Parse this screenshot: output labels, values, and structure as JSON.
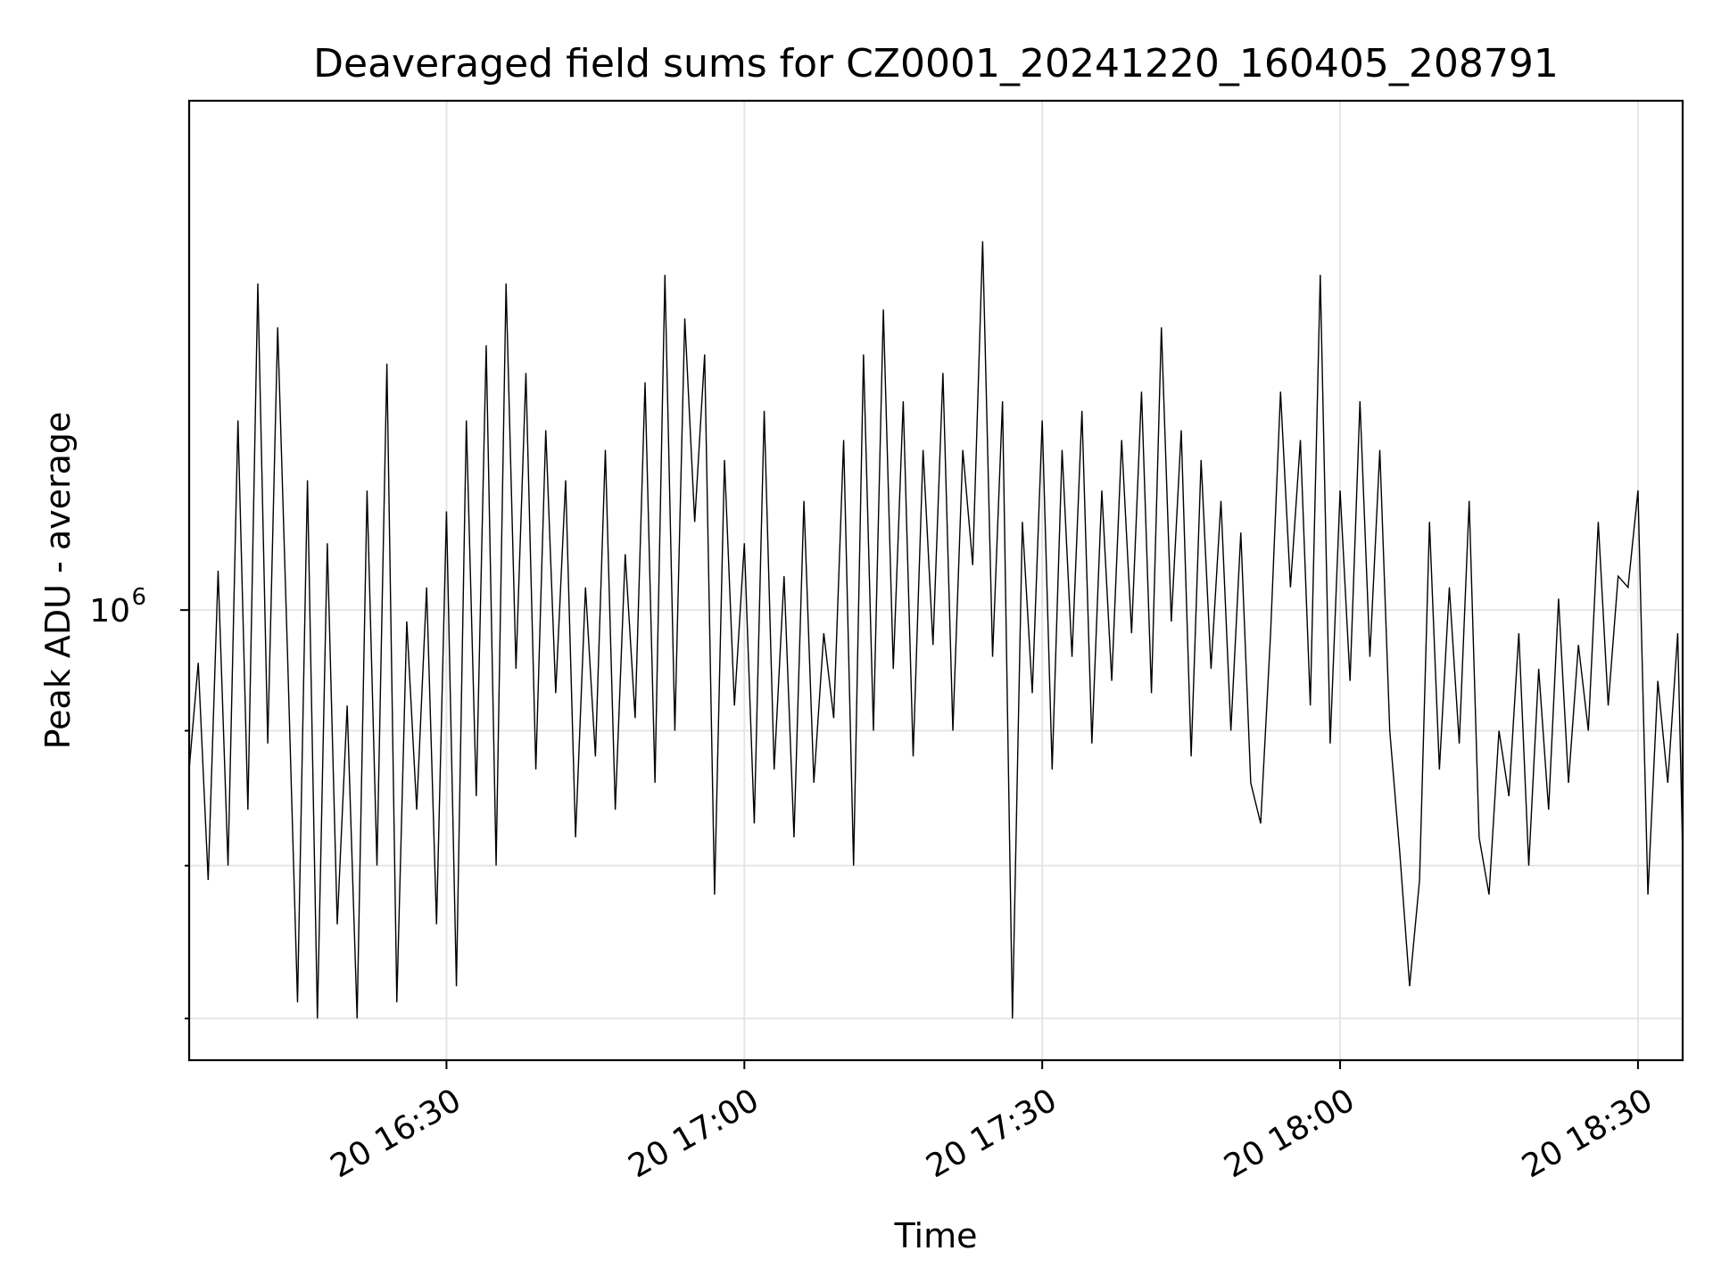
{
  "chart_data": {
    "type": "line",
    "title": "Deaveraged field sums for CZ0001_20241220_160405_208791",
    "xlabel": "Time",
    "ylabel": "Peak ADU - average",
    "y_scale": "log",
    "grid": true,
    "line_color": "#000000",
    "grid_color": "#e5e5e5",
    "x_range": [
      "2024-12-20 16:04:05",
      "2024-12-20 18:34:30"
    ],
    "y_range": [
      675000,
      1560000
    ],
    "x_ticks": [
      {
        "value": "2024-12-20 16:30",
        "label": "20 16:30"
      },
      {
        "value": "2024-12-20 17:00",
        "label": "20 17:00"
      },
      {
        "value": "2024-12-20 17:30",
        "label": "20 17:30"
      },
      {
        "value": "2024-12-20 18:00",
        "label": "20 18:00"
      },
      {
        "value": "2024-12-20 18:30",
        "label": "20 18:30"
      }
    ],
    "y_major_ticks": [
      {
        "value": 1000000,
        "base": "10",
        "exponent": "6"
      }
    ],
    "y_minor_ticks": [
      700000,
      800000,
      900000,
      2000000
    ],
    "series": [
      {
        "values": [
          [
            "16:04:05",
            870000
          ],
          [
            "16:05:00",
            955000
          ],
          [
            "16:06:00",
            790000
          ],
          [
            "16:07:00",
            1035000
          ],
          [
            "16:08:00",
            800000
          ],
          [
            "16:09:00",
            1180000
          ],
          [
            "16:10:00",
            840000
          ],
          [
            "16:11:00",
            1330000
          ],
          [
            "16:12:00",
            890000
          ],
          [
            "16:13:00",
            1280000
          ],
          [
            "16:14:00",
            960000
          ],
          [
            "16:15:00",
            710000
          ],
          [
            "16:16:00",
            1120000
          ],
          [
            "16:17:00",
            700000
          ],
          [
            "16:18:00",
            1060000
          ],
          [
            "16:19:00",
            760000
          ],
          [
            "16:20:00",
            920000
          ],
          [
            "16:21:00",
            700000
          ],
          [
            "16:22:00",
            1110000
          ],
          [
            "16:23:00",
            800000
          ],
          [
            "16:24:00",
            1240000
          ],
          [
            "16:25:00",
            710000
          ],
          [
            "16:26:00",
            990000
          ],
          [
            "16:27:00",
            840000
          ],
          [
            "16:28:00",
            1020000
          ],
          [
            "16:29:00",
            760000
          ],
          [
            "16:30:00",
            1090000
          ],
          [
            "16:31:00",
            720000
          ],
          [
            "16:32:00",
            1180000
          ],
          [
            "16:33:00",
            850000
          ],
          [
            "16:34:00",
            1260000
          ],
          [
            "16:35:00",
            800000
          ],
          [
            "16:36:00",
            1330000
          ],
          [
            "16:37:00",
            950000
          ],
          [
            "16:38:00",
            1230000
          ],
          [
            "16:39:00",
            870000
          ],
          [
            "16:40:00",
            1170000
          ],
          [
            "16:41:00",
            930000
          ],
          [
            "16:42:00",
            1120000
          ],
          [
            "16:43:00",
            820000
          ],
          [
            "16:44:00",
            1020000
          ],
          [
            "16:45:00",
            880000
          ],
          [
            "16:46:00",
            1150000
          ],
          [
            "16:47:00",
            840000
          ],
          [
            "16:48:00",
            1050000
          ],
          [
            "16:49:00",
            910000
          ],
          [
            "16:50:00",
            1220000
          ],
          [
            "16:51:00",
            860000
          ],
          [
            "16:52:00",
            1340000
          ],
          [
            "16:53:00",
            900000
          ],
          [
            "16:54:00",
            1290000
          ],
          [
            "16:55:00",
            1080000
          ],
          [
            "16:56:00",
            1250000
          ],
          [
            "16:57:00",
            780000
          ],
          [
            "16:58:00",
            1140000
          ],
          [
            "16:59:00",
            920000
          ],
          [
            "17:00:00",
            1060000
          ],
          [
            "17:01:00",
            830000
          ],
          [
            "17:02:00",
            1190000
          ],
          [
            "17:03:00",
            870000
          ],
          [
            "17:04:00",
            1030000
          ],
          [
            "17:05:00",
            820000
          ],
          [
            "17:06:00",
            1100000
          ],
          [
            "17:07:00",
            860000
          ],
          [
            "17:08:00",
            980000
          ],
          [
            "17:09:00",
            910000
          ],
          [
            "17:10:00",
            1160000
          ],
          [
            "17:11:00",
            800000
          ],
          [
            "17:12:00",
            1250000
          ],
          [
            "17:13:00",
            900000
          ],
          [
            "17:14:00",
            1300000
          ],
          [
            "17:15:00",
            950000
          ],
          [
            "17:16:00",
            1200000
          ],
          [
            "17:17:00",
            880000
          ],
          [
            "17:18:00",
            1150000
          ],
          [
            "17:19:00",
            970000
          ],
          [
            "17:20:00",
            1230000
          ],
          [
            "17:21:00",
            900000
          ],
          [
            "17:22:00",
            1150000
          ],
          [
            "17:23:00",
            1040000
          ],
          [
            "17:24:00",
            1380000
          ],
          [
            "17:25:00",
            960000
          ],
          [
            "17:26:00",
            1200000
          ],
          [
            "17:27:00",
            700000
          ],
          [
            "17:28:00",
            1080000
          ],
          [
            "17:29:00",
            930000
          ],
          [
            "17:30:00",
            1180000
          ],
          [
            "17:31:00",
            870000
          ],
          [
            "17:32:00",
            1150000
          ],
          [
            "17:33:00",
            960000
          ],
          [
            "17:34:00",
            1190000
          ],
          [
            "17:35:00",
            890000
          ],
          [
            "17:36:00",
            1110000
          ],
          [
            "17:37:00",
            940000
          ],
          [
            "17:38:00",
            1160000
          ],
          [
            "17:39:00",
            980000
          ],
          [
            "17:40:00",
            1210000
          ],
          [
            "17:41:00",
            930000
          ],
          [
            "17:42:00",
            1280000
          ],
          [
            "17:43:00",
            990000
          ],
          [
            "17:44:00",
            1170000
          ],
          [
            "17:45:00",
            880000
          ],
          [
            "17:46:00",
            1140000
          ],
          [
            "17:47:00",
            950000
          ],
          [
            "17:48:00",
            1100000
          ],
          [
            "17:49:00",
            900000
          ],
          [
            "17:50:00",
            1070000
          ],
          [
            "17:51:00",
            860000
          ],
          [
            "17:52:00",
            830000
          ],
          [
            "17:53:00",
            980000
          ],
          [
            "17:54:00",
            1210000
          ],
          [
            "17:55:00",
            1020000
          ],
          [
            "17:56:00",
            1160000
          ],
          [
            "17:57:00",
            920000
          ],
          [
            "17:58:00",
            1340000
          ],
          [
            "17:59:00",
            890000
          ],
          [
            "18:00:00",
            1110000
          ],
          [
            "18:01:00",
            940000
          ],
          [
            "18:02:00",
            1200000
          ],
          [
            "18:03:00",
            960000
          ],
          [
            "18:04:00",
            1150000
          ],
          [
            "18:05:00",
            900000
          ],
          [
            "18:06:00",
            810000
          ],
          [
            "18:07:00",
            720000
          ],
          [
            "18:08:00",
            790000
          ],
          [
            "18:09:00",
            1080000
          ],
          [
            "18:10:00",
            870000
          ],
          [
            "18:11:00",
            1020000
          ],
          [
            "18:12:00",
            890000
          ],
          [
            "18:13:00",
            1100000
          ],
          [
            "18:14:00",
            820000
          ],
          [
            "18:15:00",
            780000
          ],
          [
            "18:16:00",
            900000
          ],
          [
            "18:17:00",
            850000
          ],
          [
            "18:18:00",
            980000
          ],
          [
            "18:19:00",
            800000
          ],
          [
            "18:20:00",
            950000
          ],
          [
            "18:21:00",
            840000
          ],
          [
            "18:22:00",
            1010000
          ],
          [
            "18:23:00",
            860000
          ],
          [
            "18:24:00",
            970000
          ],
          [
            "18:25:00",
            900000
          ],
          [
            "18:26:00",
            1080000
          ],
          [
            "18:27:00",
            920000
          ],
          [
            "18:28:00",
            1030000
          ],
          [
            "18:29:00",
            1020000
          ],
          [
            "18:30:00",
            1110000
          ],
          [
            "18:31:00",
            780000
          ],
          [
            "18:32:00",
            940000
          ],
          [
            "18:33:00",
            860000
          ],
          [
            "18:34:00",
            980000
          ],
          [
            "18:34:30",
            810000
          ]
        ]
      }
    ]
  }
}
